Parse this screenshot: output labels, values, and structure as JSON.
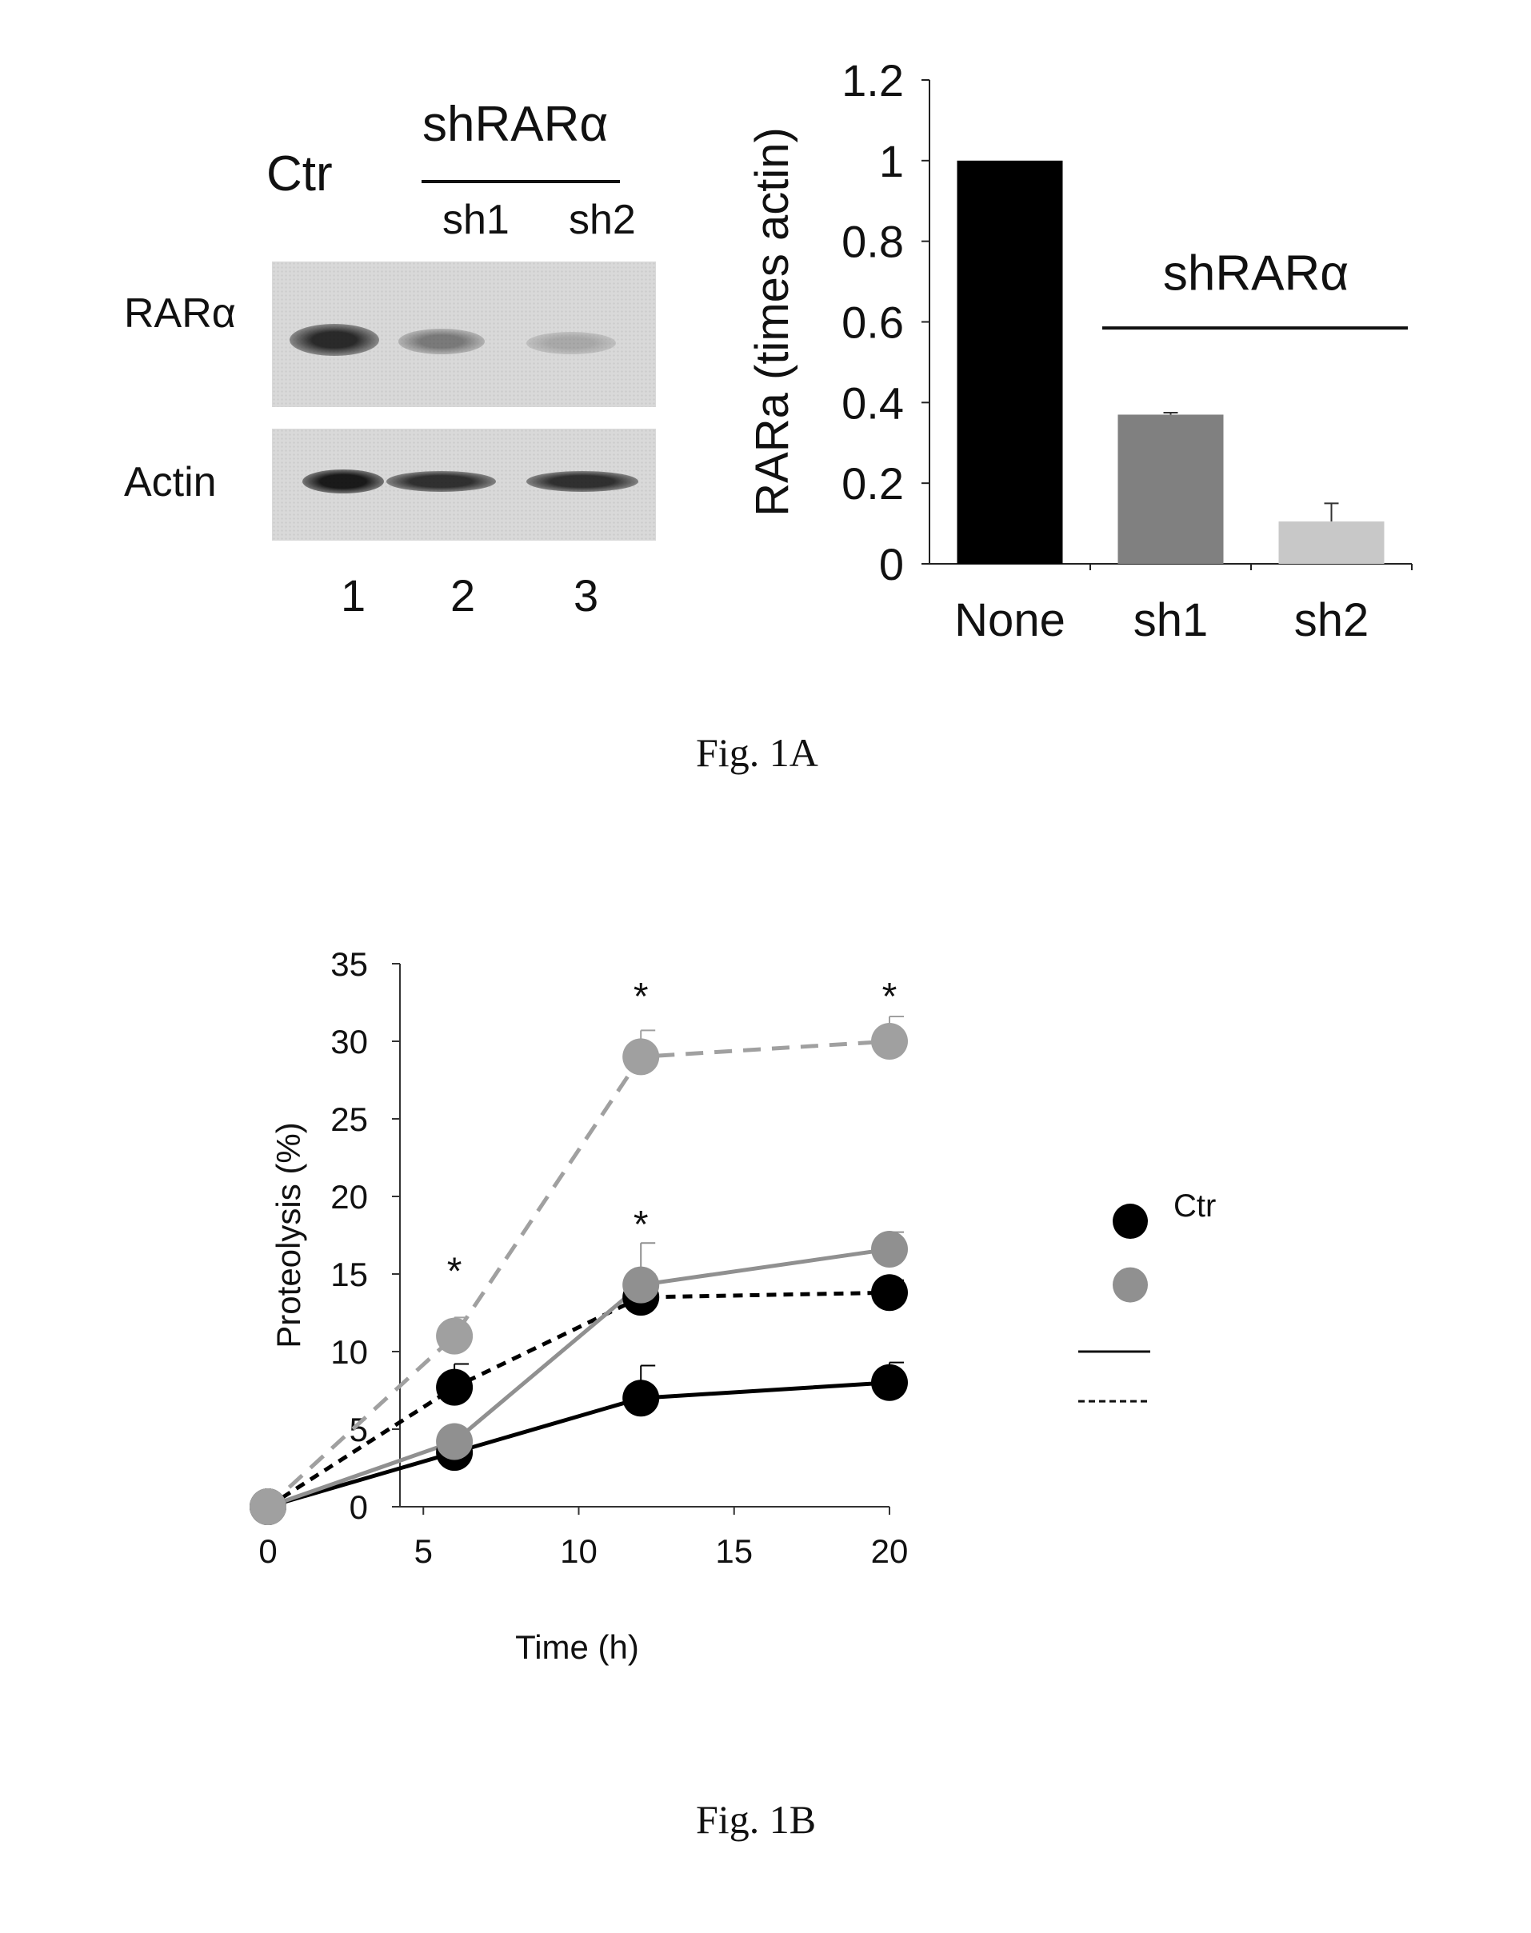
{
  "fig1a": {
    "caption": "Fig. 1A",
    "western_blot": {
      "ctr_label": "Ctr",
      "group_label": "shRARα",
      "lane_labels": [
        "sh1",
        "sh2"
      ],
      "row_labels": [
        "RARα",
        "Actin"
      ],
      "lane_numbers": [
        "1",
        "2",
        "3"
      ]
    }
  },
  "fig1b": {
    "caption": "Fig. 1B"
  },
  "chart_data": [
    {
      "type": "bar",
      "categories": [
        "None",
        "sh1",
        "sh2"
      ],
      "values": [
        1.0,
        0.37,
        0.105
      ],
      "errors": [
        0,
        0.005,
        0.045
      ],
      "colors": [
        "#000000",
        "#808080",
        "#c8c8c8"
      ],
      "ylabel": "RARa (times actin)",
      "ylim": [
        0,
        1.2
      ],
      "yticks": [
        "0",
        "0.2",
        "0.4",
        "0.6",
        "0.8",
        "1",
        "1.2"
      ],
      "annotation": "shRARα",
      "grid": false
    },
    {
      "type": "line",
      "x": [
        0,
        6,
        12,
        20
      ],
      "xlabel": "Time (h)",
      "ylabel": "Proteolysis (%)",
      "xlim": [
        0,
        20
      ],
      "ylim": [
        0,
        35
      ],
      "xticks": [
        "0",
        "5",
        "10",
        "15",
        "20"
      ],
      "yticks": [
        "0",
        "5",
        "10",
        "15",
        "20",
        "25",
        "30",
        "35"
      ],
      "grid": false,
      "series": [
        {
          "color": "#000000",
          "dash": "solid",
          "values": [
            0,
            3.5,
            7,
            8
          ],
          "errors": [
            0,
            0.4,
            2.1,
            1.3
          ]
        },
        {
          "color": "#000000",
          "dash": "dashed",
          "values": [
            0,
            7.7,
            13.5,
            13.8
          ],
          "errors": [
            0,
            1.5,
            1.5,
            0.8
          ]
        },
        {
          "color": "#909090",
          "dash": "solid",
          "values": [
            0,
            4.2,
            14.3,
            16.6
          ],
          "errors": [
            0,
            0.3,
            2.7,
            1.1
          ]
        },
        {
          "color": "#a0a0a0",
          "dash": "dashed",
          "values": [
            0,
            11,
            29,
            30
          ],
          "errors": [
            0,
            1.2,
            1.7,
            1.6
          ]
        }
      ],
      "significance": [
        {
          "x": 6,
          "y": 15.5,
          "label": "*"
        },
        {
          "x": 12,
          "y": 18.5,
          "label": "*"
        },
        {
          "x": 12,
          "y": 33.2,
          "label": "*"
        },
        {
          "x": 20,
          "y": 33.2,
          "label": "*"
        }
      ],
      "legend": {
        "placement": "right",
        "entries": [
          {
            "marker_color": "#000000",
            "label": "Ctr"
          },
          {
            "marker_color": "#909090",
            "label": ""
          },
          {
            "line_style": "solid",
            "label": ""
          },
          {
            "line_style": "dashed",
            "label": ""
          }
        ]
      }
    }
  ]
}
